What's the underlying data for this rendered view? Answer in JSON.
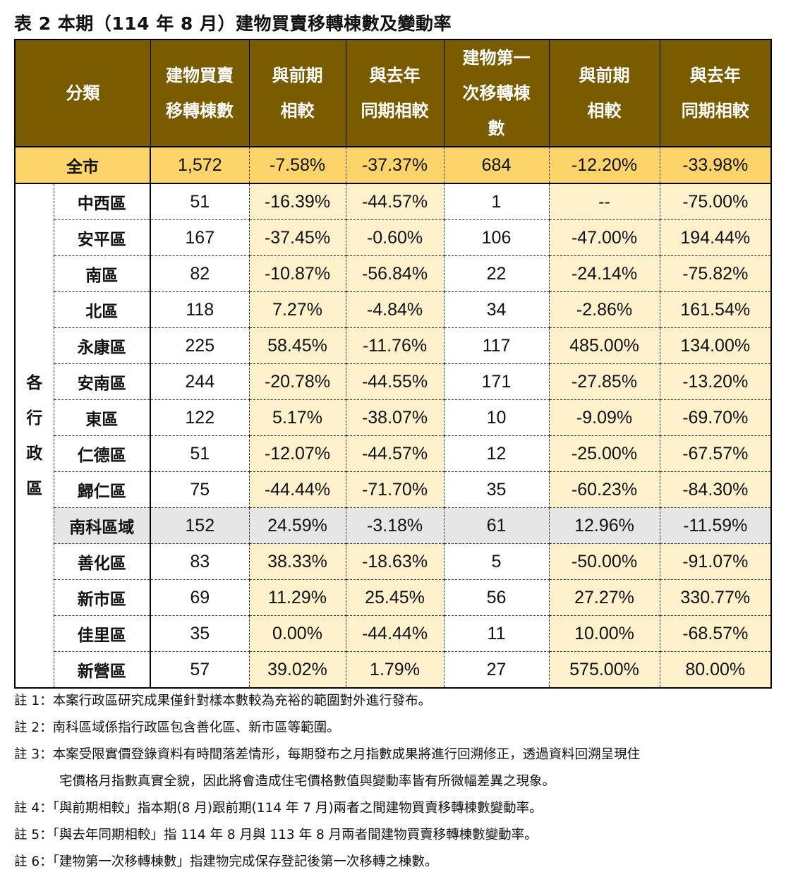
{
  "title": "表 2 本期（114 年 8 月）建物買賣移轉棟數及變動率",
  "headers": {
    "category": "分類",
    "h1": [
      "建物買賣",
      "移轉棟數"
    ],
    "h2": [
      "與前期",
      "相較"
    ],
    "h3": [
      "與去年",
      "同期相較"
    ],
    "h4": [
      "建物第一",
      "次移轉棟",
      "數"
    ],
    "h5": [
      "與前期",
      "相較"
    ],
    "h6": [
      "與去年",
      "同期相較"
    ]
  },
  "total": {
    "name": "全市",
    "values": [
      "1,572",
      "-7.58%",
      "-37.37%",
      "684",
      "-12.20%",
      "-33.98%"
    ]
  },
  "group_label": [
    "各",
    "行",
    "政",
    "區"
  ],
  "rows": [
    {
      "name": "中西區",
      "values": [
        "51",
        "-16.39%",
        "-44.57%",
        "1",
        "--",
        "-75.00%"
      ]
    },
    {
      "name": "安平區",
      "values": [
        "167",
        "-37.45%",
        "-0.60%",
        "106",
        "-47.00%",
        "194.44%"
      ]
    },
    {
      "name": "南區",
      "values": [
        "82",
        "-10.87%",
        "-56.84%",
        "22",
        "-24.14%",
        "-75.82%"
      ]
    },
    {
      "name": "北區",
      "values": [
        "118",
        "7.27%",
        "-4.84%",
        "34",
        "-2.86%",
        "161.54%"
      ]
    },
    {
      "name": "永康區",
      "values": [
        "225",
        "58.45%",
        "-11.76%",
        "117",
        "485.00%",
        "134.00%"
      ]
    },
    {
      "name": "安南區",
      "values": [
        "244",
        "-20.78%",
        "-44.55%",
        "171",
        "-27.85%",
        "-13.20%"
      ]
    },
    {
      "name": "東區",
      "values": [
        "122",
        "5.17%",
        "-38.07%",
        "10",
        "-9.09%",
        "-69.70%"
      ]
    },
    {
      "name": "仁德區",
      "values": [
        "51",
        "-12.07%",
        "-44.57%",
        "12",
        "-25.00%",
        "-67.57%"
      ]
    },
    {
      "name": "歸仁區",
      "values": [
        "75",
        "-44.44%",
        "-71.70%",
        "35",
        "-60.23%",
        "-84.30%"
      ]
    },
    {
      "name": "南科區域",
      "values": [
        "152",
        "24.59%",
        "-3.18%",
        "61",
        "12.96%",
        "-11.59%"
      ],
      "highlight": true
    },
    {
      "name": "善化區",
      "values": [
        "83",
        "38.33%",
        "-18.63%",
        "5",
        "-50.00%",
        "-91.07%"
      ]
    },
    {
      "name": "新市區",
      "values": [
        "69",
        "11.29%",
        "25.45%",
        "56",
        "27.27%",
        "330.77%"
      ]
    },
    {
      "name": "佳里區",
      "values": [
        "35",
        "0.00%",
        "-44.44%",
        "11",
        "10.00%",
        "-68.57%"
      ]
    },
    {
      "name": "新營區",
      "values": [
        "57",
        "39.02%",
        "1.79%",
        "27",
        "575.00%",
        "80.00%"
      ]
    }
  ],
  "notes": [
    "註 1：本案行政區研究成果僅針對樣本數較為充裕的範圍對外進行發布。",
    "註 2：南科區域係指行政區包含善化區、新市區等範圍。",
    "註  3：本案受限實價登錄資料有時間落差情形，每期發布之月指數成果將進行回溯修正，透過資料回溯呈現住",
    "宅價格月指數真實全貌，因此將會造成住宅價格數值與變動率皆有所微幅差異之現象。",
    "註 4：「與前期相較」指本期(8 月)跟前期(114 年 7 月)兩者之間建物買賣移轉棟數變動率。",
    "註 5：「與去年同期相較」指 114 年 8 月與 113 年 8 月兩者間建物買賣移轉棟數變動率。",
    "註 6：「建物第一次移轉棟數」指建物完成保存登記後第一次移轉之棟數。"
  ],
  "colors": {
    "header": "#7a5c00",
    "total_row": "#fdd46a",
    "light_cell": "#fff1cc",
    "highlight_row": "#e6e6e6"
  }
}
